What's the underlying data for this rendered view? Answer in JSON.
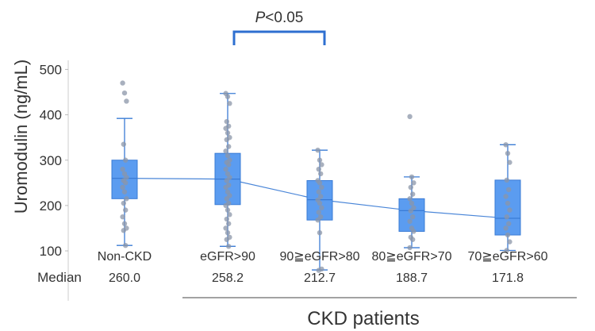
{
  "chart_data": {
    "type": "box",
    "ylabel": "Uromodulin (ng/mL)",
    "ylim": [
      0,
      520
    ],
    "yticks": [
      100,
      200,
      300,
      400,
      500
    ],
    "median_row_label": "Median",
    "group_label": "CKD patients",
    "significance": {
      "label_italic": "P",
      "label_rest": "<0.05",
      "between": [
        1,
        2
      ]
    },
    "colors": {
      "box": "#5b9cf0",
      "box_stroke": "#3a7bd5",
      "line": "#4a86d8",
      "points": "#8b96a8",
      "bracket": "#2e6fd0"
    },
    "categories": [
      "Non-CKD",
      "eGFR>90",
      "90≧eGFR>80",
      "80≧eGFR>70",
      "70≧eGFR>60"
    ],
    "medians": [
      260.0,
      258.2,
      212.7,
      188.7,
      171.8
    ],
    "median_labels": [
      "260.0",
      "258.2",
      "212.7",
      "188.7",
      "171.8"
    ],
    "boxes": [
      {
        "whisker_low": 112,
        "q1": 215,
        "median": 260.0,
        "q3": 300,
        "whisker_high": 392,
        "points": [
          470,
          448,
          430,
          335,
          300,
          280,
          270,
          262,
          255,
          250,
          240,
          230,
          215,
          205,
          190,
          175,
          160,
          150,
          145,
          112
        ]
      },
      {
        "whisker_low": 110,
        "q1": 202,
        "median": 258.2,
        "q3": 315,
        "whisker_high": 447,
        "points": [
          447,
          440,
          425,
          385,
          375,
          370,
          360,
          350,
          345,
          330,
          320,
          310,
          300,
          295,
          290,
          280,
          270,
          262,
          255,
          245,
          240,
          230,
          222,
          215,
          205,
          200,
          190,
          180,
          170,
          160,
          150,
          140,
          130,
          125,
          110
        ]
      },
      {
        "whisker_low": 58,
        "q1": 168,
        "median": 212.7,
        "q3": 255,
        "whisker_high": 322,
        "points": [
          322,
          300,
          290,
          280,
          270,
          255,
          250,
          240,
          230,
          220,
          212,
          205,
          195,
          185,
          175,
          168,
          140,
          60,
          57
        ]
      },
      {
        "whisker_low": 107,
        "q1": 143,
        "median": 188.7,
        "q3": 215,
        "whisker_high": 263,
        "points": [
          396,
          263,
          250,
          240,
          225,
          215,
          205,
          195,
          188,
          175,
          165,
          150,
          143,
          130,
          125,
          107
        ]
      },
      {
        "whisker_low": 101,
        "q1": 135,
        "median": 171.8,
        "q3": 256,
        "whisker_high": 334,
        "points": [
          334,
          315,
          295,
          256,
          235,
          220,
          205,
          190,
          175,
          160,
          150,
          135,
          120,
          101
        ]
      }
    ]
  }
}
